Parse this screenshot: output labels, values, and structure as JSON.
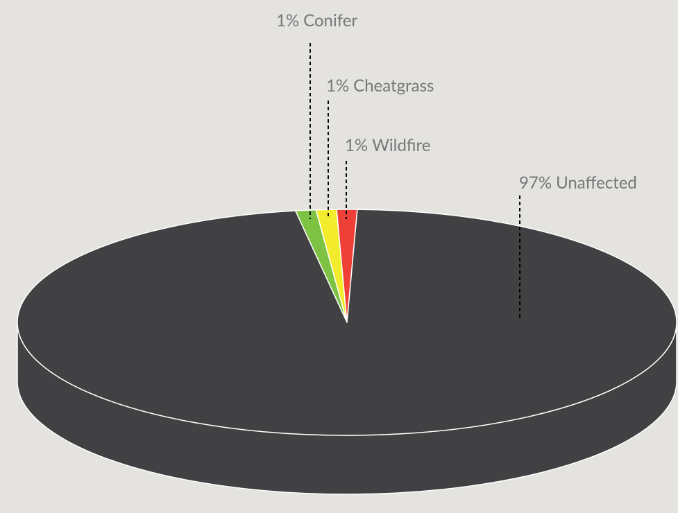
{
  "chart_data": {
    "type": "pie3d",
    "categories": [
      "Conifer",
      "Cheatgrass",
      "Wildfire",
      "Unaffected"
    ],
    "values": [
      1,
      1,
      1,
      97
    ],
    "value_labels": [
      "1%",
      "1%",
      "1%",
      "97%"
    ],
    "colors": [
      "#7dc242",
      "#f3ec2c",
      "#ee4037",
      "#414042"
    ]
  }
}
